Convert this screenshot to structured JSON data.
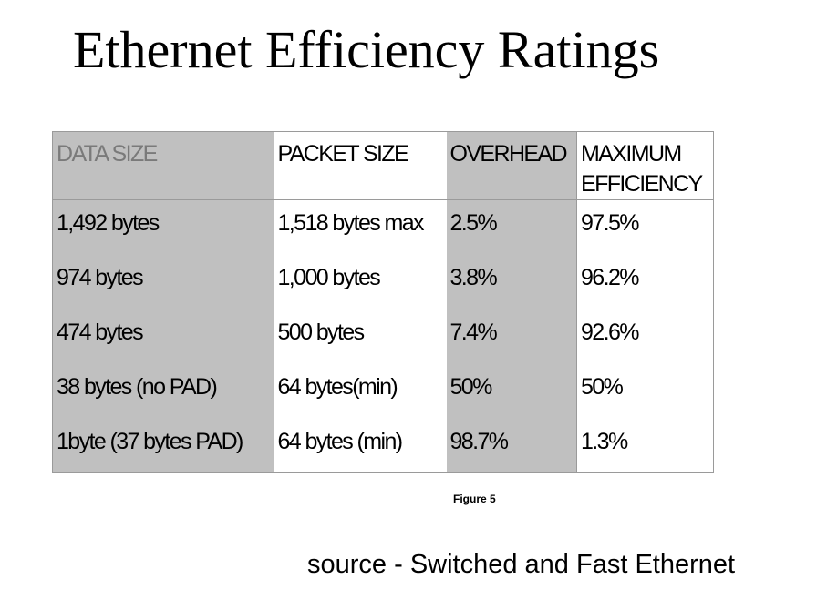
{
  "title": "Ethernet Efficiency Ratings",
  "table": {
    "headers": [
      "DATA SIZE",
      "PACKET SIZE",
      "OVERHEAD",
      "MAXIMUM EFFICIENCY"
    ],
    "rows": [
      [
        "1,492 bytes",
        "1,518 bytes max",
        "2.5%",
        "97.5%"
      ],
      [
        "974 bytes",
        "1,000 bytes",
        "3.8%",
        "96.2%"
      ],
      [
        "474 bytes",
        "500 bytes",
        "7.4%",
        "92.6%"
      ],
      [
        "38 bytes (no PAD)",
        "64 bytes(min)",
        "50%",
        "50%"
      ],
      [
        "1byte (37 bytes PAD)",
        "64 bytes (min)",
        "98.7%",
        "1.3%"
      ]
    ]
  },
  "figure_caption": "Figure 5",
  "source": "source - Switched and Fast Ethernet",
  "colors": {
    "gray_column": "#c0c0c0",
    "header_text_muted": "#7a7a7a",
    "border": "#9a9a9a"
  }
}
